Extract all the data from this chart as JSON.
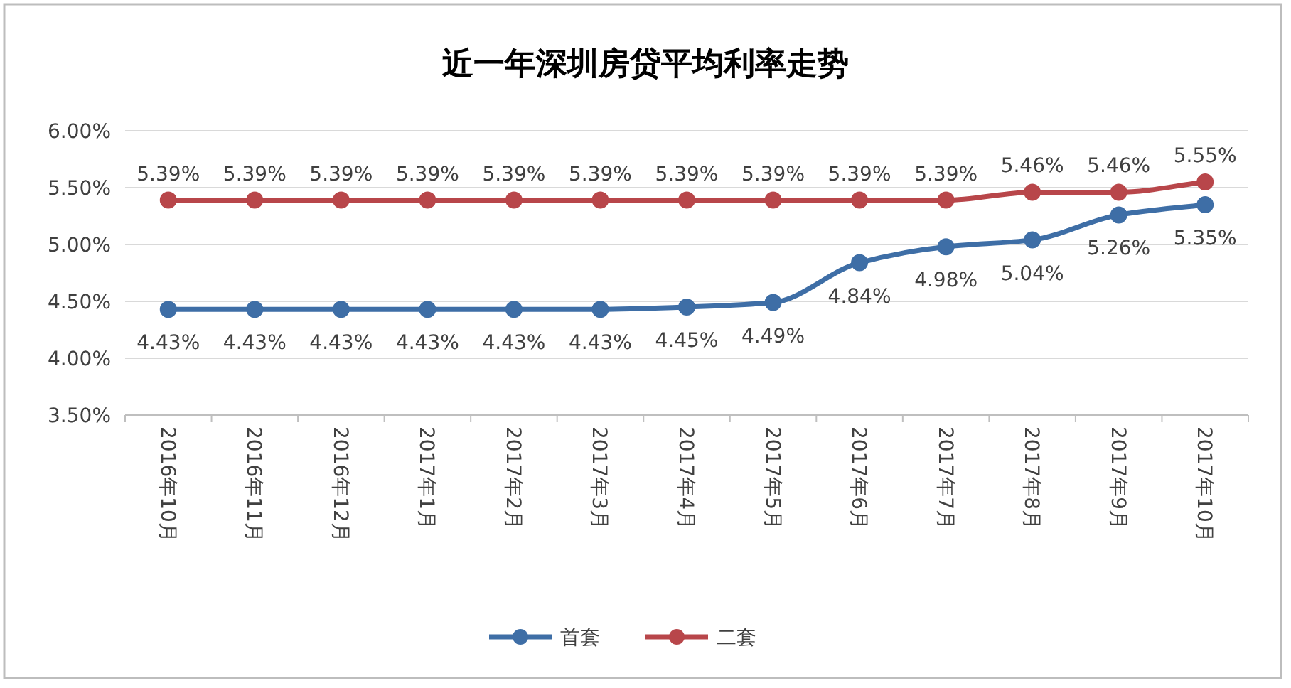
{
  "chart_data": {
    "type": "line",
    "title": "近一年深圳房贷平均利率走势",
    "categories": [
      "2016年10月",
      "2016年11月",
      "2016年12月",
      "2017年1月",
      "2017年2月",
      "2017年3月",
      "2017年4月",
      "2017年5月",
      "2017年6月",
      "2017年7月",
      "2017年8月",
      "2017年9月",
      "2017年10月"
    ],
    "series": [
      {
        "name": "首套",
        "color": "#3e6ea6",
        "values": [
          4.43,
          4.43,
          4.43,
          4.43,
          4.43,
          4.43,
          4.45,
          4.49,
          4.84,
          4.98,
          5.04,
          5.26,
          5.35
        ],
        "value_labels": [
          "4.43%",
          "4.43%",
          "4.43%",
          "4.43%",
          "4.43%",
          "4.43%",
          "4.45%",
          "4.49%",
          "4.84%",
          "4.98%",
          "5.04%",
          "5.26%",
          "5.35%"
        ]
      },
      {
        "name": "二套",
        "color": "#b8464a",
        "values": [
          5.39,
          5.39,
          5.39,
          5.39,
          5.39,
          5.39,
          5.39,
          5.39,
          5.39,
          5.39,
          5.46,
          5.46,
          5.55
        ],
        "value_labels": [
          "5.39%",
          "5.39%",
          "5.39%",
          "5.39%",
          "5.39%",
          "5.39%",
          "5.39%",
          "5.39%",
          "5.39%",
          "5.39%",
          "5.46%",
          "5.46%",
          "5.55%"
        ]
      }
    ],
    "ylim": [
      3.5,
      6.0
    ],
    "yticks": [
      {
        "value": 3.5,
        "label": "3.50%"
      },
      {
        "value": 4.0,
        "label": "4.00%"
      },
      {
        "value": 4.5,
        "label": "4.50%"
      },
      {
        "value": 5.0,
        "label": "5.00%"
      },
      {
        "value": 5.5,
        "label": "5.50%"
      },
      {
        "value": 6.0,
        "label": "6.00%"
      }
    ],
    "grid": "y",
    "legend": "bottom",
    "marker": "circle",
    "line_style": "solid"
  }
}
